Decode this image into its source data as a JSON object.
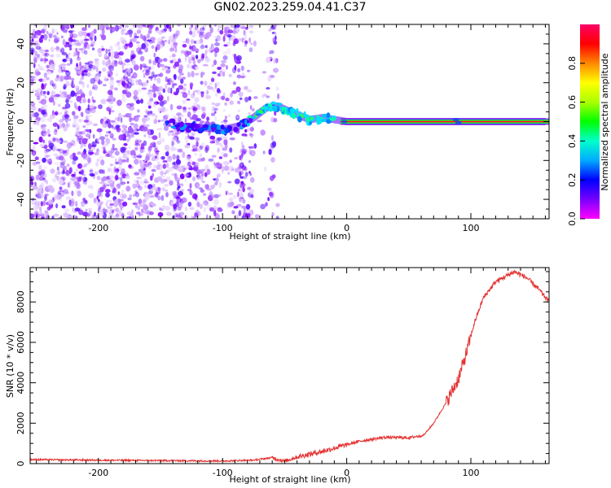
{
  "title": "GN02.2023.259.04.41.C37",
  "chart_data": [
    {
      "type": "heatmap",
      "xlabel": "Height of straight line (km)",
      "ylabel": "Frequency (Hz)",
      "xlim": [
        -255,
        163
      ],
      "ylim": [
        -50,
        50
      ],
      "xticks": [
        -200,
        -100,
        0,
        100
      ],
      "yticks": [
        -40,
        -20,
        0,
        20,
        40
      ],
      "colorbar": {
        "label": "Normalized spectral amplitude",
        "range": [
          0,
          1
        ],
        "ticks": [
          0.0,
          0.2,
          0.4,
          0.6,
          0.8
        ],
        "colormap": [
          "#ff00ff",
          "#7700ff",
          "#0000ff",
          "#00aaff",
          "#00ffcc",
          "#00ff00",
          "#aaff00",
          "#ffff00",
          "#ff8800",
          "#ff0000",
          "#ff0066"
        ]
      },
      "features": {
        "noise_region_x": [
          -255,
          -55
        ],
        "noise_gap_x": [
          -75,
          -62
        ],
        "tone_start_x": -55,
        "tone_frequency": 0,
        "chirp_points": [
          {
            "x": -140,
            "y": -2
          },
          {
            "x": -120,
            "y": -3
          },
          {
            "x": -100,
            "y": -4
          },
          {
            "x": -85,
            "y": -2
          },
          {
            "x": -75,
            "y": 2
          },
          {
            "x": -65,
            "y": 7
          },
          {
            "x": -56,
            "y": 8
          },
          {
            "x": -45,
            "y": 5
          },
          {
            "x": -30,
            "y": 1
          },
          {
            "x": -20,
            "y": 2
          },
          {
            "x": -10,
            "y": 1
          },
          {
            "x": 0,
            "y": 0
          },
          {
            "x": 160,
            "y": 0
          }
        ]
      }
    },
    {
      "type": "line",
      "xlabel": "Height of straight line (km)",
      "ylabel": "SNR (10 * v/v)",
      "xlim": [
        -255,
        163
      ],
      "ylim": [
        0,
        9700
      ],
      "xticks": [
        -200,
        -100,
        0,
        100
      ],
      "yticks": [
        0,
        2000,
        4000,
        6000,
        8000
      ],
      "color": "#e53333",
      "points": [
        {
          "x": -255,
          "y": 200
        },
        {
          "x": -200,
          "y": 170
        },
        {
          "x": -150,
          "y": 150
        },
        {
          "x": -100,
          "y": 130
        },
        {
          "x": -75,
          "y": 170
        },
        {
          "x": -60,
          "y": 300
        },
        {
          "x": -50,
          "y": 120
        },
        {
          "x": -40,
          "y": 330
        },
        {
          "x": -20,
          "y": 600
        },
        {
          "x": -5,
          "y": 850
        },
        {
          "x": 10,
          "y": 1100
        },
        {
          "x": 30,
          "y": 1300
        },
        {
          "x": 50,
          "y": 1280
        },
        {
          "x": 62,
          "y": 1400
        },
        {
          "x": 70,
          "y": 2000
        },
        {
          "x": 80,
          "y": 3000
        },
        {
          "x": 90,
          "y": 4200
        },
        {
          "x": 97,
          "y": 5600
        },
        {
          "x": 103,
          "y": 7000
        },
        {
          "x": 110,
          "y": 8200
        },
        {
          "x": 120,
          "y": 9000
        },
        {
          "x": 135,
          "y": 9500
        },
        {
          "x": 145,
          "y": 9200
        },
        {
          "x": 155,
          "y": 8600
        },
        {
          "x": 163,
          "y": 8000
        }
      ]
    }
  ]
}
